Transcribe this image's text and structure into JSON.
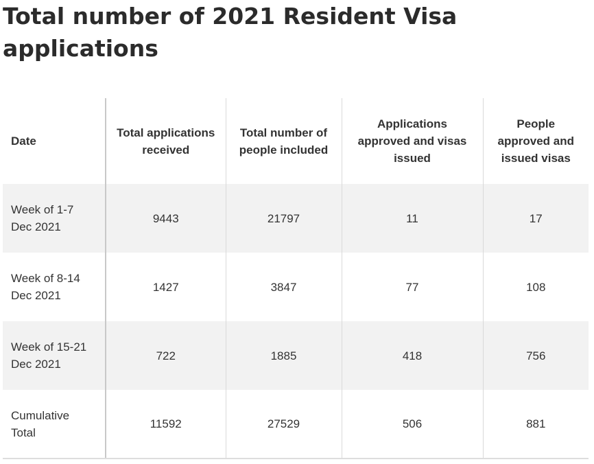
{
  "title": "Total number of 2021 Resident Visa applications",
  "table": {
    "headers": [
      "Date",
      "Total applications received",
      "Total number of people included",
      "Applications approved and visas issued",
      "People approved and issued visas"
    ],
    "rows": [
      [
        "Week of 1-7 Dec 2021",
        "9443",
        "21797",
        "11",
        "17"
      ],
      [
        "Week of 8-14 Dec 2021",
        "1427",
        "3847",
        "77",
        "108"
      ],
      [
        "Week of 15-21 Dec 2021",
        "722",
        "1885",
        "418",
        "756"
      ],
      [
        "Cumulative Total",
        "11592",
        "27529",
        "506",
        "881"
      ]
    ]
  }
}
